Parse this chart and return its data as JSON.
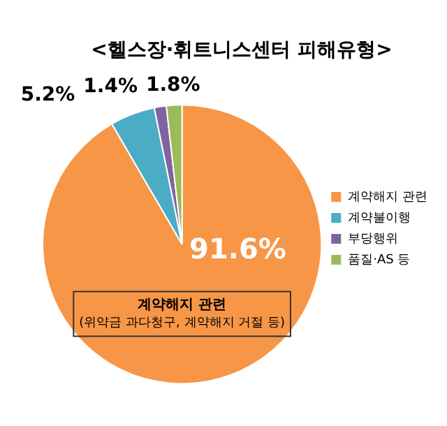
{
  "chart_data": {
    "type": "pie",
    "title": "<헬스장·휘트니스센터 피해유형>",
    "categories": [
      "계약해지 관련",
      "계약불이행",
      "부당행위",
      "품질·AS 등"
    ],
    "values": [
      91.6,
      5.2,
      1.4,
      1.8
    ],
    "colors": [
      "#f79646",
      "#4bacc6",
      "#8064a2",
      "#9bbb59"
    ],
    "value_labels": [
      "91.6%",
      "5.2%",
      "1.4%",
      "1.8%"
    ],
    "legend": "right",
    "annotations": [
      "계약해지 관련",
      "(위약금 과다청구, 계약해지 거절 등)"
    ]
  }
}
